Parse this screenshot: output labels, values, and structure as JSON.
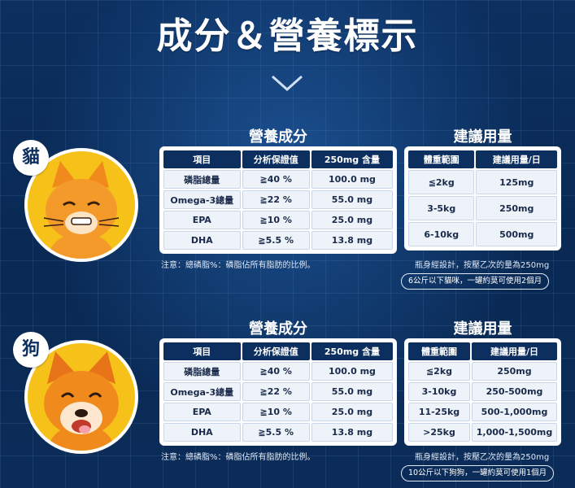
{
  "title": "成分＆營養標示",
  "cat": {
    "tag": "貓",
    "nutrition_heading": "營養成分",
    "dosage_heading": "建議用量",
    "nutrition_headers": [
      "項目",
      "分析保證值",
      "250mg 含量"
    ],
    "nutrition_rows": [
      [
        "磷脂總量",
        "≧40 %",
        "100.0 mg"
      ],
      [
        "Omega-3總量",
        "≧22 %",
        "55.0 mg"
      ],
      [
        "EPA",
        "≧10 %",
        "25.0 mg"
      ],
      [
        "DHA",
        "≧5.5 %",
        "13.8 mg"
      ]
    ],
    "dosage_headers": [
      "體重範圍",
      "建議用量/日"
    ],
    "dosage_rows": [
      [
        "≦2kg",
        "125mg"
      ],
      [
        "3-5kg",
        "250mg"
      ],
      [
        "6-10kg",
        "500mg"
      ]
    ],
    "note": "注意：總磷脂%：磷脂佔所有脂肪的比例。",
    "dosage_note": "瓶身經設計，按壓乙次的量為250mg",
    "pill": "6公斤以下貓咪，一罐約莫可使用2個月"
  },
  "dog": {
    "tag": "狗",
    "nutrition_heading": "營養成分",
    "dosage_heading": "建議用量",
    "nutrition_headers": [
      "項目",
      "分析保證值",
      "250mg 含量"
    ],
    "nutrition_rows": [
      [
        "磷脂總量",
        "≧40 %",
        "100.0 mg"
      ],
      [
        "Omega-3總量",
        "≧22 %",
        "55.0 mg"
      ],
      [
        "EPA",
        "≧10 %",
        "25.0 mg"
      ],
      [
        "DHA",
        "≧5.5 %",
        "13.8 mg"
      ]
    ],
    "dosage_headers": [
      "體重範圍",
      "建議用量/日"
    ],
    "dosage_rows": [
      [
        "≦2kg",
        "250mg"
      ],
      [
        "3-10kg",
        "250-500mg"
      ],
      [
        "11-25kg",
        "500-1,000mg"
      ],
      [
        ">25kg",
        "1,000-1,500mg"
      ]
    ],
    "note": "注意：總磷脂%：磷脂佔所有脂肪的比例。",
    "dosage_note": "瓶身經設計，按壓乙次的量為250mg",
    "pill": "10公斤以下狗狗，一罐約莫可使用1個月"
  },
  "icons": [
    "chevron-down-icon",
    "cat-illustration",
    "dog-illustration"
  ],
  "colors": {
    "background": "#0c2f5f",
    "avatar": "#f6c21a",
    "header_cell": "#0c2f5f"
  }
}
